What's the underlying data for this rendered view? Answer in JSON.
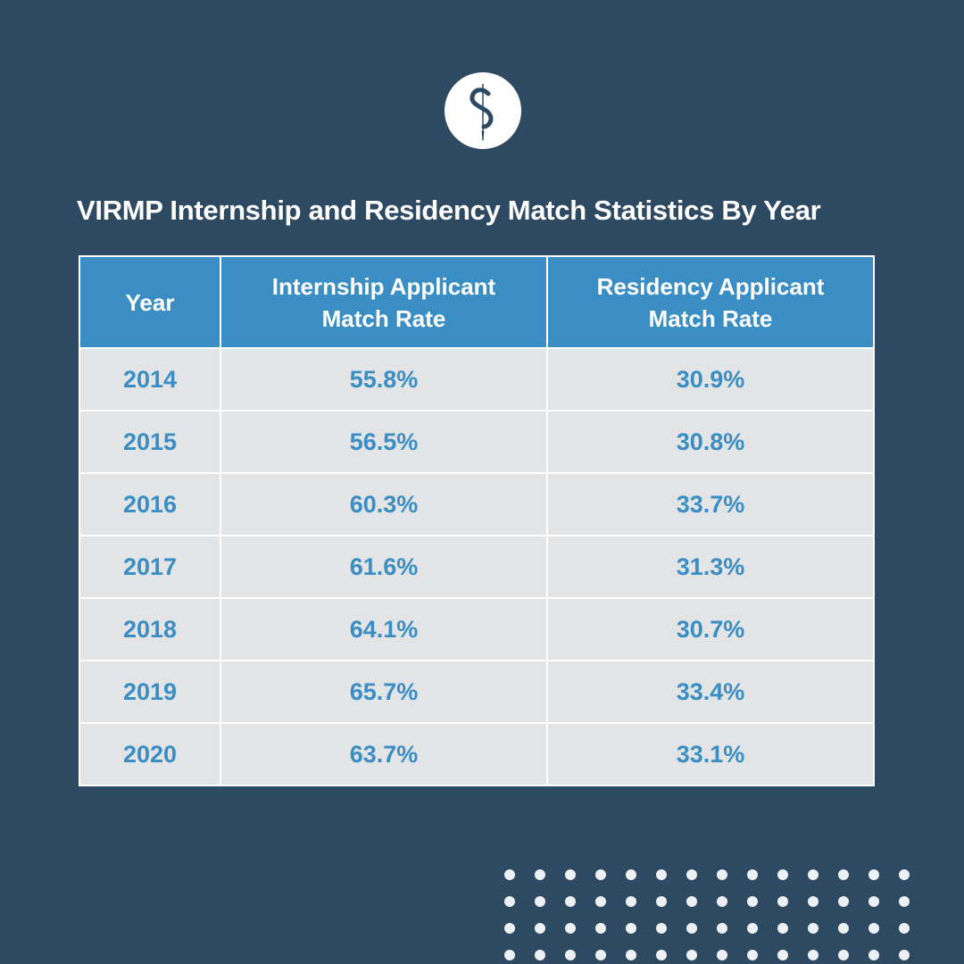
{
  "chart_data": {
    "type": "table",
    "title": "VIRMP Internship and Residency Match Statistics By Year",
    "columns": [
      {
        "line1": "Year",
        "line2": ""
      },
      {
        "line1": "Internship Applicant",
        "line2": "Match Rate"
      },
      {
        "line1": "Residency Applicant",
        "line2": "Match Rate"
      }
    ],
    "rows": [
      [
        "2014",
        "55.8%",
        "30.9%"
      ],
      [
        "2015",
        "56.5%",
        "30.8%"
      ],
      [
        "2016",
        "60.3%",
        "33.7%"
      ],
      [
        "2017",
        "61.6%",
        "31.3%"
      ],
      [
        "2018",
        "64.1%",
        "30.7%"
      ],
      [
        "2019",
        "65.7%",
        "33.4%"
      ],
      [
        "2020",
        "63.7%",
        "33.1%"
      ]
    ]
  },
  "colors": {
    "background": "#2e4a63",
    "header": "#3a8ec3",
    "cell": "#e3e4e6",
    "value_text": "#3a8ec3"
  },
  "logo_icon": "staff-s-logo-icon",
  "decoration_icon": "dot-grid-pattern"
}
